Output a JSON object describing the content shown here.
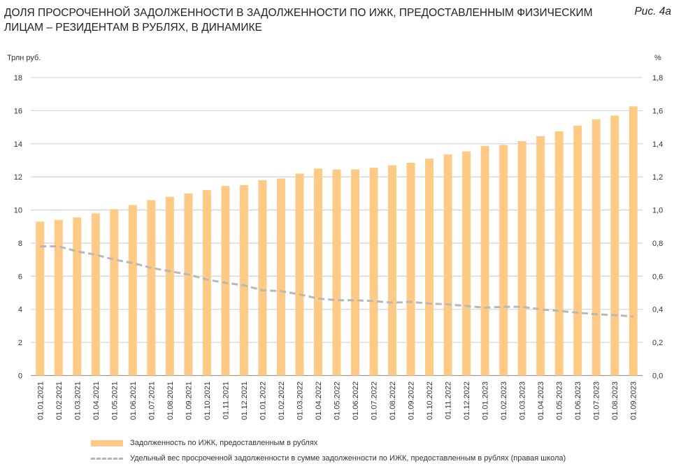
{
  "title": "Доля просроченной задолженности в задолженности по ИЖК, предоставленным физическим лицам – резидентам в рублях, в динамике",
  "figure_label": "Рис. 4а",
  "chart_data": {
    "type": "bar+line",
    "left_axis_label": "Трлн руб.",
    "right_axis_label": "%",
    "ylim_left": [
      0,
      18
    ],
    "ylim_right": [
      0,
      1.8
    ],
    "left_ticks": [
      "0",
      "2",
      "4",
      "6",
      "8",
      "10",
      "12",
      "14",
      "16",
      "18"
    ],
    "right_ticks": [
      "0,0",
      "0,2",
      "0,4",
      "0,6",
      "0,8",
      "1,0",
      "1,2",
      "1,4",
      "1,6",
      "1,8"
    ],
    "grid": true,
    "legend_placement": "bottom",
    "categories": [
      "01.01.2021",
      "01.02.2021",
      "01.03.2021",
      "01.04.2021",
      "01.05.2021",
      "01.06.2021",
      "01.07.2021",
      "01.08.2021",
      "01.09.2021",
      "01.10.2021",
      "01.11.2021",
      "01.12.2021",
      "01.01.2022",
      "01.02.2022",
      "01.03.2022",
      "01.04.2022",
      "01.05.2022",
      "01.06.2022",
      "01.07.2022",
      "01.08.2022",
      "01.09.2022",
      "01.10.2022",
      "01.11.2022",
      "01.12.2022",
      "01.01.2023",
      "01.02.2023",
      "01.03.2023",
      "01.04.2023",
      "01.05.2023",
      "01.06.2023",
      "01.07.2023",
      "01.08.2023",
      "01.09.2023"
    ],
    "series": [
      {
        "name": "Задолженность по ИЖК, предоставленным в рублях",
        "type": "bar",
        "axis": "left",
        "color": "#FFCA85",
        "values": [
          9.3,
          9.4,
          9.55,
          9.8,
          10.05,
          10.3,
          10.6,
          10.8,
          11.0,
          11.2,
          11.45,
          11.5,
          11.8,
          11.9,
          12.2,
          12.5,
          12.45,
          12.45,
          12.55,
          12.7,
          12.85,
          13.1,
          13.35,
          13.54,
          13.87,
          13.93,
          14.16,
          14.46,
          14.75,
          15.1,
          15.48,
          15.7,
          16.26
        ]
      },
      {
        "name": "Удельный вес просроченной задолженности в сумме задолженности по ИЖК, предоставленным в рублях (правая школа)",
        "type": "line",
        "axis": "right",
        "color": "#B8B8B8",
        "dashed": true,
        "values": [
          0.78,
          0.78,
          0.75,
          0.73,
          0.7,
          0.68,
          0.65,
          0.63,
          0.61,
          0.58,
          0.56,
          0.545,
          0.515,
          0.51,
          0.49,
          0.465,
          0.455,
          0.455,
          0.45,
          0.44,
          0.445,
          0.435,
          0.43,
          0.42,
          0.41,
          0.415,
          0.415,
          0.4,
          0.39,
          0.38,
          0.37,
          0.365,
          0.357
        ]
      }
    ]
  }
}
